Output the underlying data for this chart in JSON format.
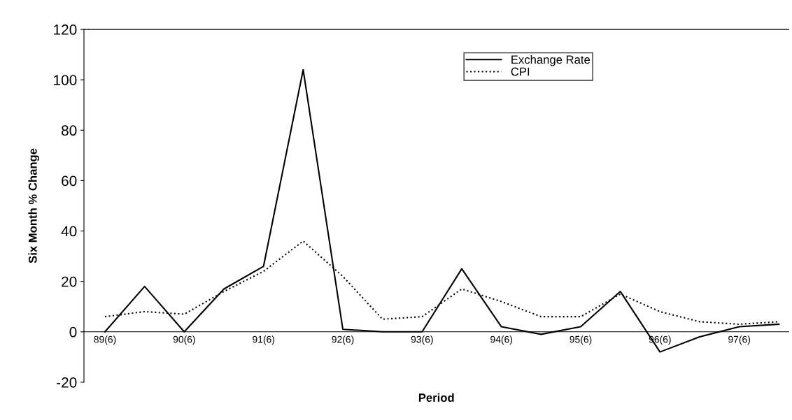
{
  "chart_data": {
    "type": "line",
    "xlabel": "Period",
    "ylabel": "Six Month % Change",
    "categories": [
      "89(6)",
      null,
      "90(6)",
      null,
      "91(6)",
      null,
      "92(6)",
      null,
      "93(6)",
      null,
      "94(6)",
      null,
      "95(6)",
      null,
      "96(6)",
      null,
      "97(6)",
      null
    ],
    "series": [
      {
        "name": "Exchange Rate",
        "color": "#000000",
        "line_style": "solid",
        "values": [
          0,
          18,
          0,
          17,
          26,
          104,
          1,
          0,
          0,
          25,
          2,
          -1,
          2,
          16,
          -8,
          -2,
          2,
          3
        ]
      },
      {
        "name": "CPI",
        "color": "#000000",
        "line_style": "dotted",
        "values": [
          6,
          8,
          7,
          16,
          24,
          36,
          22,
          5,
          6,
          17,
          12,
          6,
          6,
          15,
          8,
          4,
          3,
          4
        ]
      }
    ],
    "ylim": [
      -20,
      120
    ],
    "yticks": [
      -20,
      0,
      20,
      40,
      60,
      80,
      100,
      120
    ],
    "grid": false,
    "legend": "top right",
    "marker": "none"
  }
}
